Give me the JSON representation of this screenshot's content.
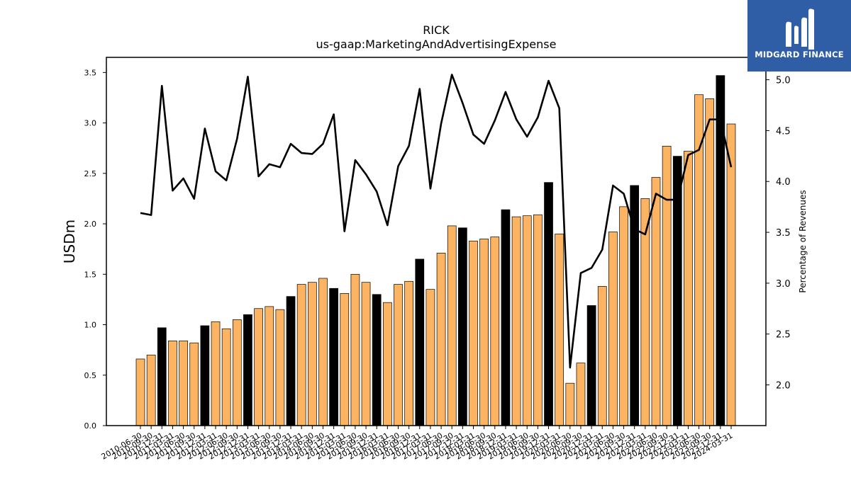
{
  "chart_data": {
    "type": "bar+line",
    "title": "RICK",
    "subtitle": "us-gaap:MarketingAndAdvertisingExpense",
    "ylabel": "USDm",
    "y2label": "Percentage of Revenues",
    "ylim": [
      0,
      3.65
    ],
    "y2lim": [
      1.6,
      5.22
    ],
    "yticks": [
      "0.0",
      "0.5",
      "1.0",
      "1.5",
      "2.0",
      "2.5",
      "3.0",
      "3.5"
    ],
    "y2ticks": [
      "2.0",
      "2.5",
      "3.0",
      "3.5",
      "4.0",
      "4.5",
      "5.0"
    ],
    "categories": [
      "2010-06-30",
      "2010-09-30",
      "2010-12-31",
      "2011-03-31",
      "2011-06-30",
      "2011-09-30",
      "2011-12-31",
      "2012-03-31",
      "2012-06-30",
      "2012-09-30",
      "2012-12-31",
      "2013-03-31",
      "2013-06-30",
      "2013-09-30",
      "2013-12-31",
      "2014-03-31",
      "2014-06-30",
      "2014-09-30",
      "2014-12-31",
      "2015-03-31",
      "2015-06-30",
      "2015-09-30",
      "2015-12-31",
      "2016-03-31",
      "2016-06-30",
      "2016-09-30",
      "2016-12-31",
      "2017-03-31",
      "2017-06-30",
      "2017-09-30",
      "2017-12-31",
      "2018-03-31",
      "2018-06-30",
      "2018-09-30",
      "2018-12-31",
      "2019-03-31",
      "2019-06-30",
      "2019-09-30",
      "2019-12-31",
      "2020-03-31",
      "2020-06-30",
      "2020-09-30",
      "2020-12-31",
      "2021-03-31",
      "2021-06-30",
      "2021-09-30",
      "2021-12-31",
      "2022-03-31",
      "2022-06-30",
      "2022-09-30",
      "2022-12-31",
      "2023-03-31",
      "2023-06-30",
      "2023-09-30",
      "2023-12-31",
      "2024-03-31"
    ],
    "bar_values": [
      0.66,
      0.7,
      0.97,
      0.84,
      0.84,
      0.82,
      0.99,
      1.03,
      0.96,
      1.05,
      1.1,
      1.16,
      1.18,
      1.15,
      1.28,
      1.4,
      1.42,
      1.46,
      1.36,
      1.31,
      1.5,
      1.42,
      1.3,
      1.22,
      1.4,
      1.43,
      1.65,
      1.35,
      1.71,
      1.98,
      1.96,
      1.83,
      1.85,
      1.87,
      2.14,
      2.07,
      2.08,
      2.09,
      2.41,
      1.9,
      0.42,
      0.62,
      1.19,
      1.38,
      1.92,
      2.17,
      2.38,
      2.25,
      2.46,
      2.77,
      2.67,
      2.72,
      3.28,
      3.24,
      3.47,
      2.99
    ],
    "highlight_quarter": "12-31",
    "bar_color": "#fdb462",
    "highlight_color": "#000000",
    "line_values": [
      3.69,
      3.67,
      4.94,
      3.91,
      4.03,
      3.83,
      4.52,
      4.1,
      4.01,
      4.42,
      5.03,
      4.05,
      4.17,
      4.14,
      4.37,
      4.28,
      4.27,
      4.37,
      4.66,
      3.51,
      4.21,
      4.07,
      3.9,
      3.57,
      4.15,
      4.35,
      4.91,
      3.93,
      4.57,
      5.05,
      4.77,
      4.46,
      4.37,
      4.6,
      4.88,
      4.61,
      4.44,
      4.63,
      4.99,
      4.72,
      2.17,
      3.1,
      3.15,
      3.33,
      3.96,
      3.88,
      3.53,
      3.48,
      3.88,
      3.82,
      3.82,
      4.26,
      4.31,
      4.61,
      4.61,
      4.14
    ],
    "line_color": "#000000",
    "grid": false,
    "legend": "none"
  },
  "logo": {
    "text": "MIDGARD FINANCE",
    "background": "#2f5ea6",
    "foreground": "#ffffff"
  }
}
